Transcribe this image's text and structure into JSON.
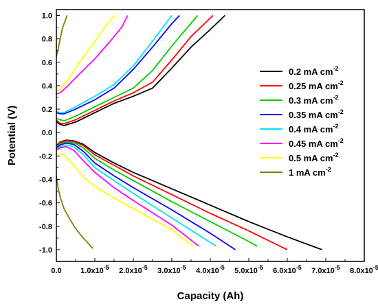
{
  "chart_data": {
    "type": "line",
    "xlabel": "Capacity (Ah)",
    "ylabel": "Potential (V)",
    "xlim": [
      0,
      8e-05
    ],
    "ylim": [
      -1.1,
      1.05
    ],
    "grid": false,
    "legend_position": "right",
    "x_ticks": [
      {
        "value": 0,
        "label": "0.0"
      },
      {
        "value": 1e-05,
        "base": "1.0x10",
        "exp": "-5"
      },
      {
        "value": 2e-05,
        "base": "2.0x10",
        "exp": "-5"
      },
      {
        "value": 3e-05,
        "base": "3.0x10",
        "exp": "-5"
      },
      {
        "value": 4e-05,
        "base": "4.0x10",
        "exp": "-5"
      },
      {
        "value": 5e-05,
        "base": "5.0x10",
        "exp": "-5"
      },
      {
        "value": 6e-05,
        "base": "6.0x10",
        "exp": "-5"
      },
      {
        "value": 7e-05,
        "base": "7.0x10",
        "exp": "-5"
      },
      {
        "value": 8e-05,
        "base": "8.0x10",
        "exp": "-5"
      }
    ],
    "y_ticks": [
      {
        "value": -1.0,
        "label": "-1.0"
      },
      {
        "value": -0.8,
        "label": "-0.8"
      },
      {
        "value": -0.6,
        "label": "-0.6"
      },
      {
        "value": -0.4,
        "label": "-0.4"
      },
      {
        "value": -0.2,
        "label": "-0.2"
      },
      {
        "value": 0.0,
        "label": "0.0"
      },
      {
        "value": 0.2,
        "label": "0.2"
      },
      {
        "value": 0.4,
        "label": "0.4"
      },
      {
        "value": 0.6,
        "label": "0.6"
      },
      {
        "value": 0.8,
        "label": "0.8"
      },
      {
        "value": 1.0,
        "label": "1.0"
      }
    ],
    "series": [
      {
        "name": "0.2 mA cm",
        "sup": "-2",
        "color": "#000000",
        "charge": [
          [
            0,
            0.09
          ],
          [
            1e-06,
            0.07
          ],
          [
            2e-06,
            0.06
          ],
          [
            5e-06,
            0.09
          ],
          [
            1e-05,
            0.17
          ],
          [
            1.5e-05,
            0.25
          ],
          [
            2e-05,
            0.31
          ],
          [
            2.5e-05,
            0.38
          ],
          [
            3e-05,
            0.55
          ],
          [
            3.5e-05,
            0.73
          ],
          [
            4e-05,
            0.88
          ],
          [
            4.38e-05,
            1.0
          ]
        ],
        "discharge": [
          [
            0,
            -0.11
          ],
          [
            1e-06,
            -0.08
          ],
          [
            2.5e-06,
            -0.065
          ],
          [
            4.5e-06,
            -0.07
          ],
          [
            7e-06,
            -0.1
          ],
          [
            1e-05,
            -0.17
          ],
          [
            1.5e-05,
            -0.26
          ],
          [
            2e-05,
            -0.34
          ],
          [
            3e-05,
            -0.48
          ],
          [
            4e-05,
            -0.62
          ],
          [
            5e-05,
            -0.76
          ],
          [
            6e-05,
            -0.89
          ],
          [
            6.9e-05,
            -1.0
          ]
        ]
      },
      {
        "name": "0.25 mA cm",
        "sup": "-2",
        "color": "#ff0000",
        "charge": [
          [
            0,
            0.1
          ],
          [
            1e-06,
            0.08
          ],
          [
            2e-06,
            0.075
          ],
          [
            5e-06,
            0.11
          ],
          [
            1e-05,
            0.19
          ],
          [
            1.5e-05,
            0.27
          ],
          [
            2e-05,
            0.34
          ],
          [
            2.5e-05,
            0.43
          ],
          [
            3e-05,
            0.62
          ],
          [
            3.5e-05,
            0.82
          ],
          [
            4.07e-05,
            1.0
          ]
        ],
        "discharge": [
          [
            0,
            -0.11
          ],
          [
            1e-06,
            -0.085
          ],
          [
            2.5e-06,
            -0.07
          ],
          [
            4.5e-06,
            -0.075
          ],
          [
            7e-06,
            -0.11
          ],
          [
            1e-05,
            -0.19
          ],
          [
            1.5e-05,
            -0.28
          ],
          [
            2e-05,
            -0.37
          ],
          [
            3e-05,
            -0.53
          ],
          [
            4e-05,
            -0.69
          ],
          [
            5e-05,
            -0.84
          ],
          [
            6e-05,
            -1.0
          ]
        ]
      },
      {
        "name": "0.3 mA cm",
        "sup": "-2",
        "color": "#00cc00",
        "charge": [
          [
            0,
            0.12
          ],
          [
            1e-06,
            0.11
          ],
          [
            2e-06,
            0.1
          ],
          [
            5e-06,
            0.14
          ],
          [
            1e-05,
            0.22
          ],
          [
            1.5e-05,
            0.3
          ],
          [
            2e-05,
            0.38
          ],
          [
            2.5e-05,
            0.53
          ],
          [
            3e-05,
            0.74
          ],
          [
            3.36e-05,
            0.88
          ],
          [
            3.67e-05,
            1.0
          ]
        ],
        "discharge": [
          [
            0,
            -0.12
          ],
          [
            1e-06,
            -0.095
          ],
          [
            2.5e-06,
            -0.08
          ],
          [
            4.5e-06,
            -0.085
          ],
          [
            7e-06,
            -0.13
          ],
          [
            1e-05,
            -0.22
          ],
          [
            1.5e-05,
            -0.32
          ],
          [
            2e-05,
            -0.41
          ],
          [
            3e-05,
            -0.59
          ],
          [
            4e-05,
            -0.76
          ],
          [
            5e-05,
            -0.93
          ],
          [
            5.22e-05,
            -0.97
          ]
        ]
      },
      {
        "name": "0.35 mA cm",
        "sup": "-2",
        "color": "#0000ff",
        "charge": [
          [
            0,
            0.17
          ],
          [
            1e-06,
            0.16
          ],
          [
            2e-06,
            0.16
          ],
          [
            5e-06,
            0.2
          ],
          [
            1e-05,
            0.28
          ],
          [
            1.5e-05,
            0.38
          ],
          [
            2e-05,
            0.54
          ],
          [
            2.5e-05,
            0.73
          ],
          [
            3e-05,
            0.93
          ],
          [
            3.2e-05,
            1.0
          ]
        ],
        "discharge": [
          [
            0,
            -0.13
          ],
          [
            1e-06,
            -0.105
          ],
          [
            2.5e-06,
            -0.09
          ],
          [
            4.5e-06,
            -0.1
          ],
          [
            7e-06,
            -0.16
          ],
          [
            1e-05,
            -0.26
          ],
          [
            1.5e-05,
            -0.37
          ],
          [
            2e-05,
            -0.47
          ],
          [
            3e-05,
            -0.66
          ],
          [
            4e-05,
            -0.86
          ],
          [
            4.65e-05,
            -1.0
          ]
        ]
      },
      {
        "name": "0.4 mA cm",
        "sup": "-2",
        "color": "#00e5ee",
        "charge": [
          [
            0,
            0.18
          ],
          [
            1e-06,
            0.17
          ],
          [
            2e-06,
            0.17
          ],
          [
            5e-06,
            0.22
          ],
          [
            1e-05,
            0.31
          ],
          [
            1.5e-05,
            0.41
          ],
          [
            2e-05,
            0.57
          ],
          [
            2.5e-05,
            0.78
          ],
          [
            3e-05,
            1.0
          ]
        ],
        "discharge": [
          [
            0,
            -0.14
          ],
          [
            1e-06,
            -0.12
          ],
          [
            2.5e-06,
            -0.105
          ],
          [
            4.5e-06,
            -0.12
          ],
          [
            7e-06,
            -0.19
          ],
          [
            1e-05,
            -0.3
          ],
          [
            1.5e-05,
            -0.41
          ],
          [
            2e-05,
            -0.52
          ],
          [
            3e-05,
            -0.73
          ],
          [
            4.15e-05,
            -0.97
          ]
        ]
      },
      {
        "name": "0.45 mA cm",
        "sup": "-2",
        "color": "#ff00ff",
        "charge": [
          [
            0,
            0.33
          ],
          [
            1e-06,
            0.34
          ],
          [
            3e-06,
            0.4
          ],
          [
            6e-06,
            0.5
          ],
          [
            1e-05,
            0.63
          ],
          [
            1.4e-05,
            0.78
          ],
          [
            1.7e-05,
            0.9
          ],
          [
            1.85e-05,
            1.0
          ]
        ],
        "discharge": [
          [
            0,
            -0.15
          ],
          [
            1e-06,
            -0.13
          ],
          [
            2.5e-06,
            -0.12
          ],
          [
            4.5e-06,
            -0.15
          ],
          [
            7e-06,
            -0.24
          ],
          [
            1e-05,
            -0.34
          ],
          [
            1.5e-05,
            -0.47
          ],
          [
            2e-05,
            -0.58
          ],
          [
            3e-05,
            -0.79
          ],
          [
            3.7e-05,
            -0.97
          ]
        ]
      },
      {
        "name": "0.5 mA cm",
        "sup": "-2",
        "color": "#ffff00",
        "charge": [
          [
            0,
            0.35
          ],
          [
            1e-06,
            0.37
          ],
          [
            3e-06,
            0.45
          ],
          [
            6e-06,
            0.6
          ],
          [
            1e-05,
            0.78
          ],
          [
            1.3e-05,
            0.92
          ],
          [
            1.52e-05,
            1.0
          ]
        ],
        "discharge": [
          [
            0,
            -0.19
          ],
          [
            1e-06,
            -0.18
          ],
          [
            2e-06,
            -0.19
          ],
          [
            4e-06,
            -0.26
          ],
          [
            7e-06,
            -0.38
          ],
          [
            1e-05,
            -0.46
          ],
          [
            1.5e-05,
            -0.56
          ],
          [
            2e-05,
            -0.65
          ],
          [
            3e-05,
            -0.83
          ],
          [
            3.55e-05,
            -0.97
          ]
        ]
      },
      {
        "name": "1 mA cm",
        "sup": "-2",
        "color": "#808000",
        "charge": [
          [
            0,
            0.65
          ],
          [
            5e-07,
            0.72
          ],
          [
            1e-06,
            0.8
          ],
          [
            1.5e-06,
            0.88
          ],
          [
            2e-06,
            0.93
          ],
          [
            2.8e-06,
            1.0
          ]
        ],
        "discharge": [
          [
            0,
            -0.37
          ],
          [
            5e-07,
            -0.48
          ],
          [
            1e-06,
            -0.55
          ],
          [
            2e-06,
            -0.65
          ],
          [
            3.5e-06,
            -0.74
          ],
          [
            5e-06,
            -0.82
          ],
          [
            7e-06,
            -0.9
          ],
          [
            9.5e-06,
            -0.99
          ]
        ]
      }
    ]
  }
}
